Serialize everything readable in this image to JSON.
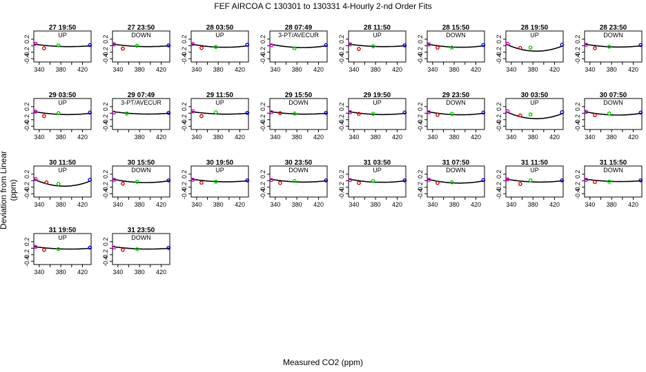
{
  "header": {
    "title": "FEF   AIRCOA C   130301 to 130331   4-Hourly 2-nd Order Fits",
    "ylabel": "Deviation from Linear (ppm)",
    "xlabel": "Measured CO2 (ppm)"
  },
  "colors": {
    "curve": "#000000",
    "p1": "#cc00cc",
    "p2": "#dd0000",
    "p3": "#00cc00",
    "p4": "#0000dd"
  },
  "chart_data": {
    "type": "scatter",
    "xlim": [
      330,
      436
    ],
    "ylim": [
      -0.5,
      0.45
    ],
    "xticks": [
      340,
      380,
      420
    ],
    "xticks_alt": [
      380,
      420
    ],
    "yticks": [
      -0.4,
      -0.2,
      0.2
    ],
    "panels": [
      {
        "title": "27 19:50",
        "label": "UP",
        "curve": [
          0.15,
          -0.032
        ],
        "points": [
          [
            0.03,
            0.06
          ],
          [
            0.18,
            -0.08
          ],
          [
            0.43,
            0.01
          ],
          [
            0.98,
            0.02
          ]
        ]
      },
      {
        "title": "27 23:50",
        "label": "DOWN",
        "curve": [
          0.15,
          -0.032
        ],
        "points": [
          [
            0.03,
            0.04
          ],
          [
            0.18,
            -0.09
          ],
          [
            0.43,
            0.0
          ],
          [
            0.98,
            0.01
          ]
        ]
      },
      {
        "title": "28 03:50",
        "label": "UP",
        "curve": [
          0.2,
          -0.045
        ],
        "points": [
          [
            0.03,
            0.05
          ],
          [
            0.18,
            -0.07
          ],
          [
            0.43,
            -0.04
          ],
          [
            0.98,
            0.03
          ]
        ]
      },
      {
        "title": "28 07:49",
        "label": "3-PT/AVECUR",
        "curve": [
          0.15,
          -0.05
        ],
        "points": [
          [
            0.03,
            0.01
          ],
          [
            0.43,
            -0.08
          ],
          [
            0.98,
            0.02
          ]
        ]
      },
      {
        "title": "28 11:50",
        "label": "UP",
        "curve": [
          0.15,
          -0.032
        ],
        "points": [
          [
            0.03,
            0.04
          ],
          [
            0.18,
            -0.1
          ],
          [
            0.43,
            -0.02
          ],
          [
            0.98,
            0.01
          ]
        ]
      },
      {
        "title": "28 15:50",
        "label": "DOWN",
        "curve": [
          0.15,
          -0.045
        ],
        "points": [
          [
            0.03,
            0.04
          ],
          [
            0.18,
            -0.06
          ],
          [
            0.43,
            -0.06
          ],
          [
            0.98,
            0.02
          ]
        ]
      },
      {
        "title": "28 19:50",
        "label": "UP",
        "curve": [
          0.25,
          -0.12
        ],
        "points": [
          [
            0.03,
            0.06
          ],
          [
            0.25,
            -0.07
          ],
          [
            0.43,
            -0.06
          ],
          [
            0.98,
            0.03
          ]
        ]
      },
      {
        "title": "28 23:50",
        "label": "DOWN",
        "curve": [
          0.15,
          -0.04
        ],
        "points": [
          [
            0.03,
            0.03
          ],
          [
            0.18,
            -0.08
          ],
          [
            0.43,
            -0.03
          ],
          [
            0.98,
            0.02
          ]
        ]
      },
      {
        "title": "29 03:50",
        "label": "UP",
        "curve": [
          0.2,
          -0.04
        ],
        "points": [
          [
            0.03,
            0.05
          ],
          [
            0.18,
            -0.09
          ],
          [
            0.43,
            0.0
          ],
          [
            0.98,
            0.02
          ]
        ]
      },
      {
        "title": "29 07:49",
        "label": "3-PT/AVECUR",
        "curve": [
          0.15,
          -0.03
        ],
        "points": [
          [
            0.03,
            0.02
          ],
          [
            0.25,
            -0.01
          ],
          [
            0.98,
            0.01
          ]
        ]
      },
      {
        "title": "29 11:50",
        "label": "UP",
        "curve": [
          0.12,
          -0.032
        ],
        "points": [
          [
            0.03,
            0.06
          ],
          [
            0.18,
            -0.09
          ],
          [
            0.43,
            0.03
          ],
          [
            0.98,
            0.01
          ]
        ]
      },
      {
        "title": "29 15:50",
        "label": "DOWN",
        "curve": [
          0.12,
          -0.032
        ],
        "points": [
          [
            0.03,
            0.03
          ],
          [
            0.18,
            0.0
          ],
          [
            0.43,
            -0.01
          ],
          [
            0.98,
            0.01
          ]
        ]
      },
      {
        "title": "29 19:50",
        "label": "UP",
        "curve": [
          0.12,
          -0.04
        ],
        "points": [
          [
            0.03,
            0.03
          ],
          [
            0.18,
            -0.02
          ],
          [
            0.43,
            -0.02
          ],
          [
            0.98,
            0.02
          ]
        ]
      },
      {
        "title": "29 23:50",
        "label": "DOWN",
        "curve": [
          0.15,
          -0.045
        ],
        "points": [
          [
            0.03,
            0.03
          ],
          [
            0.18,
            -0.05
          ],
          [
            0.43,
            -0.02
          ],
          [
            0.98,
            0.02
          ]
        ]
      },
      {
        "title": "30 03:50",
        "label": "UP",
        "curve": [
          0.28,
          -0.12
        ],
        "points": [
          [
            0.03,
            0.06
          ],
          [
            0.25,
            -0.07
          ],
          [
            0.43,
            -0.04
          ],
          [
            0.98,
            0.03
          ]
        ]
      },
      {
        "title": "30 07:50",
        "label": "DOWN",
        "curve": [
          0.18,
          -0.05
        ],
        "points": [
          [
            0.03,
            0.04
          ],
          [
            0.18,
            -0.06
          ],
          [
            0.43,
            -0.01
          ],
          [
            0.98,
            0.02
          ]
        ]
      },
      {
        "title": "30 11:50",
        "label": "UP",
        "curve": [
          0.35,
          -0.12
        ],
        "points": [
          [
            0.03,
            0.05
          ],
          [
            0.22,
            -0.05
          ],
          [
            0.43,
            -0.1
          ],
          [
            0.98,
            0.03
          ]
        ]
      },
      {
        "title": "30 15:50",
        "label": "DOWN",
        "curve": [
          0.15,
          -0.05
        ],
        "points": [
          [
            0.03,
            0.03
          ],
          [
            0.18,
            -0.09
          ],
          [
            0.43,
            -0.03
          ],
          [
            0.98,
            0.01
          ]
        ]
      },
      {
        "title": "30 19:50",
        "label": "UP",
        "curve": [
          0.12,
          -0.035
        ],
        "points": [
          [
            0.03,
            0.03
          ],
          [
            0.18,
            -0.06
          ],
          [
            0.43,
            -0.03
          ],
          [
            0.98,
            0.01
          ]
        ]
      },
      {
        "title": "30 23:50",
        "label": "DOWN",
        "curve": [
          0.12,
          -0.04
        ],
        "points": [
          [
            0.03,
            0.02
          ],
          [
            0.18,
            -0.07
          ],
          [
            0.43,
            -0.01
          ],
          [
            0.98,
            0.01
          ]
        ]
      },
      {
        "title": "31 03:50",
        "label": "UP",
        "curve": [
          0.15,
          -0.045
        ],
        "points": [
          [
            0.03,
            0.02
          ],
          [
            0.18,
            -0.07
          ],
          [
            0.43,
            -0.01
          ],
          [
            0.98,
            0.01
          ]
        ]
      },
      {
        "title": "31 07:50",
        "label": "DOWN",
        "curve": [
          0.18,
          -0.06
        ],
        "points": [
          [
            0.03,
            0.03
          ],
          [
            0.18,
            -0.07
          ],
          [
            0.43,
            -0.05
          ],
          [
            0.98,
            0.02
          ]
        ]
      },
      {
        "title": "31 11:50",
        "label": "UP",
        "curve": [
          0.15,
          -0.04
        ],
        "points": [
          [
            0.03,
            0.04
          ],
          [
            0.25,
            -0.1
          ],
          [
            0.43,
            0.01
          ],
          [
            0.98,
            0.01
          ]
        ]
      },
      {
        "title": "31 15:50",
        "label": "DOWN",
        "curve": [
          0.12,
          -0.03
        ],
        "points": [
          [
            0.03,
            0.03
          ],
          [
            0.18,
            -0.04
          ],
          [
            0.43,
            -0.03
          ],
          [
            0.98,
            0.01
          ]
        ]
      },
      {
        "title": "31 19:50",
        "label": "UP",
        "curve": [
          0.12,
          -0.03
        ],
        "points": [
          [
            0.03,
            0.04
          ],
          [
            0.18,
            -0.05
          ],
          [
            0.43,
            -0.03
          ],
          [
            0.98,
            0.02
          ]
        ]
      },
      {
        "title": "31 23:50",
        "label": "DOWN",
        "curve": [
          0.12,
          -0.03
        ],
        "points": [
          [
            0.03,
            0.02
          ],
          [
            0.18,
            -0.05
          ],
          [
            0.43,
            -0.03
          ],
          [
            0.98,
            0.01
          ]
        ]
      }
    ]
  }
}
